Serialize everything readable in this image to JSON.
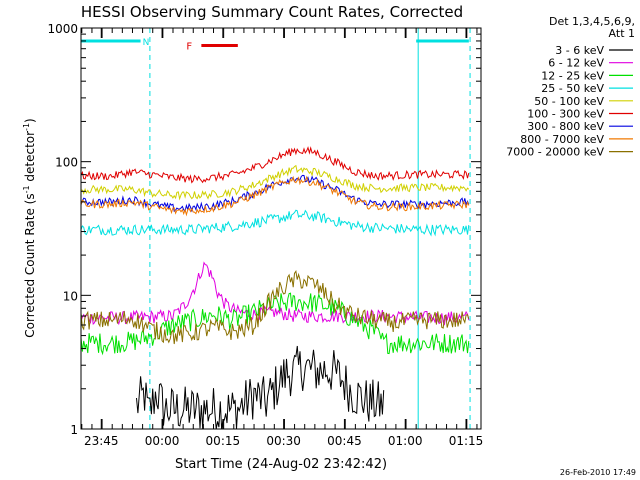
{
  "chart_data": {
    "type": "line",
    "title": "HESSI Observing Summary Count Rates, Corrected",
    "xlabel": "Start Time (24-Aug-02 23:42:42)",
    "ylabel": "Corrected Count Rate (s",
    "ylabel_sup1": "-1",
    "ylabel_mid": " detector",
    "ylabel_sup2": "-1",
    "ylabel_end": ")",
    "yscale": "log",
    "ylim": [
      1,
      1000
    ],
    "xlim_minutes": [
      -2.7,
      96
    ],
    "x_tick_labels": [
      {
        "label": "23:45",
        "minutes": 2.3
      },
      {
        "label": "00:00",
        "minutes": 17.3
      },
      {
        "label": "00:15",
        "minutes": 32.3
      },
      {
        "label": "00:30",
        "minutes": 47.3
      },
      {
        "label": "00:45",
        "minutes": 62.3
      },
      {
        "label": "01:00",
        "minutes": 77.3
      },
      {
        "label": "01:15",
        "minutes": 92.3
      }
    ],
    "y_tick_labels": [
      {
        "label": "1",
        "value": 1
      },
      {
        "label": "10",
        "value": 10
      },
      {
        "label": "100",
        "value": 100
      },
      {
        "label": "1000",
        "value": 1000
      }
    ],
    "legend_header": [
      "Det 1,3,4,5,6,9,",
      "Att 1"
    ],
    "legend_placement": "right",
    "series": [
      {
        "name": "3 - 6 keV",
        "color": "#000000",
        "x": [
          11,
          13,
          14,
          16,
          17,
          18,
          36,
          40,
          43,
          46,
          48,
          50,
          52,
          54,
          56,
          58,
          60,
          62,
          64,
          68,
          72
        ],
        "y": [
          1.5,
          1.8,
          1.3,
          1.9,
          1.6,
          1.4,
          1.4,
          1.8,
          1.6,
          2.2,
          2.6,
          2.7,
          2.9,
          2.8,
          2.7,
          2.8,
          2.6,
          2.3,
          1.9,
          1.6,
          1.5
        ]
      },
      {
        "name": "6 - 12 keV",
        "color": "#e000e0",
        "x": [
          -2.7,
          10,
          20,
          23,
          26,
          27,
          28,
          29,
          30,
          31,
          33,
          36,
          40,
          45,
          50,
          60,
          70,
          80,
          93
        ],
        "y": [
          6.8,
          6.8,
          7.0,
          8.5,
          12.5,
          15.5,
          17,
          15,
          13,
          10.5,
          8.5,
          7.5,
          7.2,
          7.5,
          7.0,
          7.0,
          7.0,
          6.8,
          6.8
        ]
      },
      {
        "name": "12 - 25 keV",
        "color": "#00e000",
        "x": [
          -2.7,
          5,
          10,
          15,
          20,
          25,
          30,
          35,
          40,
          45,
          50,
          55,
          60,
          65,
          70,
          72,
          93
        ],
        "y": [
          4.4,
          4.4,
          4.5,
          5.0,
          6.0,
          6.5,
          7.2,
          6.5,
          7.5,
          8.5,
          9.0,
          8.8,
          8.0,
          6.5,
          5.2,
          4.4,
          4.4
        ]
      },
      {
        "name": "25 - 50 keV",
        "color": "#00e0e0",
        "x": [
          -2.7,
          10,
          20,
          25,
          30,
          35,
          40,
          45,
          50,
          55,
          60,
          65,
          70,
          80,
          93
        ],
        "y": [
          31,
          31,
          31,
          31,
          32,
          33,
          35,
          37,
          40,
          39,
          36,
          33,
          32,
          31,
          31
        ]
      },
      {
        "name": "50 - 100 keV",
        "color": "#d0d000",
        "x": [
          -2.7,
          5,
          10,
          15,
          20,
          25,
          30,
          35,
          40,
          45,
          50,
          55,
          60,
          65,
          70,
          80,
          93
        ],
        "y": [
          62,
          62,
          62,
          58,
          56,
          56,
          57,
          60,
          67,
          78,
          88,
          84,
          75,
          66,
          63,
          64,
          64
        ]
      },
      {
        "name": "100 - 300 keV",
        "color": "#e00000",
        "x": [
          -2.7,
          5,
          10,
          15,
          20,
          25,
          30,
          35,
          40,
          45,
          50,
          55,
          60,
          65,
          70,
          80,
          93
        ],
        "y": [
          78,
          78,
          84,
          80,
          76,
          74,
          76,
          80,
          90,
          105,
          122,
          118,
          100,
          84,
          78,
          80,
          80
        ]
      },
      {
        "name": "300 - 800 keV",
        "color": "#0000e0",
        "x": [
          -2.7,
          5,
          10,
          15,
          20,
          25,
          30,
          35,
          40,
          45,
          50,
          55,
          60,
          65,
          70,
          80,
          93
        ],
        "y": [
          50,
          50,
          52,
          48,
          45,
          45,
          47,
          51,
          58,
          68,
          76,
          72,
          62,
          52,
          48,
          48,
          50
        ]
      },
      {
        "name": "800 - 7000 keV",
        "color": "#f07800",
        "x": [
          -2.7,
          5,
          10,
          15,
          20,
          25,
          30,
          35,
          40,
          45,
          50,
          55,
          60,
          65,
          70,
          80,
          93
        ],
        "y": [
          48,
          48,
          50,
          46,
          43,
          43,
          45,
          49,
          56,
          66,
          74,
          70,
          60,
          50,
          46,
          46,
          48
        ]
      },
      {
        "name": "7000 - 20000 keV",
        "color": "#8a7000",
        "x": [
          -2.7,
          5,
          10,
          15,
          20,
          25,
          30,
          35,
          40,
          42,
          45,
          48,
          50,
          52,
          55,
          58,
          60,
          65,
          70,
          75,
          80,
          93
        ],
        "y": [
          6.5,
          6.5,
          6.8,
          5.5,
          5.0,
          5.2,
          5.8,
          5.3,
          6.0,
          7.5,
          10,
          12,
          13,
          13,
          12,
          10,
          8.5,
          7.0,
          6.5,
          6.2,
          6.5,
          6.5
        ]
      }
    ],
    "annotations": [
      {
        "label": "N",
        "color": "#00e0e0"
      },
      {
        "label": "F",
        "color": "#e00000"
      }
    ],
    "night_markers": [
      {
        "x": [
          -2.7,
          12
        ],
        "y": 800
      },
      {
        "x": [
          80,
          93
        ],
        "y": 800
      }
    ],
    "flare_marker": {
      "x": [
        27,
        36
      ],
      "y": 740
    },
    "vlines": [
      {
        "minutes": 14.3,
        "style": "dashed",
        "color": "#00e0e0"
      },
      {
        "minutes": 80.5,
        "style": "solid",
        "color": "#00e0e0"
      },
      {
        "minutes": 93.3,
        "style": "dashed",
        "color": "#00e0e0"
      }
    ],
    "footer_date": "26-Feb-2010 17:49"
  }
}
